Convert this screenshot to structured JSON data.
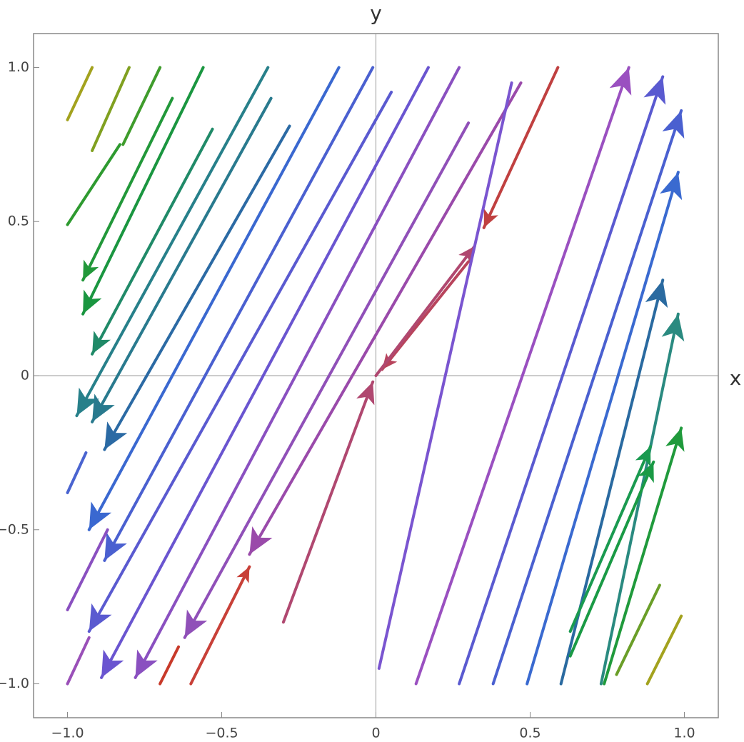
{
  "chart_data": {
    "type": "stream",
    "xlabel": "x",
    "ylabel": "y",
    "xlim": [
      -1.11,
      1.11
    ],
    "ylim": [
      -1.11,
      1.11
    ],
    "xticks": [
      {
        "value": -1,
        "label": "−1.0"
      },
      {
        "value": -0.5,
        "label": "−0.5"
      },
      0,
      0.5,
      {
        "value": 1,
        "label": "1.0"
      }
    ],
    "yticks": [
      {
        "value": -1,
        "label": "−1.0"
      },
      {
        "value": -0.5,
        "label": "−0.5"
      },
      0,
      0.5,
      {
        "value": 1,
        "label": "1.0"
      }
    ],
    "streamlines": [
      {
        "x": [
          -0.92,
          -1.0
        ],
        "y": [
          1.0,
          0.83
        ],
        "color": "#a3a21e",
        "arrow": false
      },
      {
        "x": [
          -0.8,
          -0.92
        ],
        "y": [
          1.0,
          0.73
        ],
        "color": "#80a020",
        "arrow": false
      },
      {
        "x": [
          -0.7,
          -0.82
        ],
        "y": [
          1.0,
          0.75
        ],
        "color": "#3f9c2c",
        "arrow": false
      },
      {
        "x": [
          -0.83,
          -1.0
        ],
        "y": [
          0.75,
          0.49
        ],
        "color": "#2e9a30",
        "arrow": false
      },
      {
        "x": [
          -0.66,
          -0.95
        ],
        "y": [
          0.9,
          0.31
        ],
        "color": "#22983a",
        "arrow": true
      },
      {
        "x": [
          -0.56,
          -0.95
        ],
        "y": [
          1.0,
          0.2
        ],
        "color": "#1a9640",
        "arrow": true
      },
      {
        "x": [
          -0.53,
          -0.92
        ],
        "y": [
          0.8,
          0.07
        ],
        "color": "#208a68",
        "arrow": true
      },
      {
        "x": [
          -0.35,
          -0.97
        ],
        "y": [
          1.0,
          -0.13
        ],
        "color": "#27808a",
        "arrow": true
      },
      {
        "x": [
          -0.34,
          -0.92
        ],
        "y": [
          0.9,
          -0.15
        ],
        "color": "#297a8e",
        "arrow": true
      },
      {
        "x": [
          -0.28,
          -0.88
        ],
        "y": [
          0.81,
          -0.24
        ],
        "color": "#2b6aa4",
        "arrow": true
      },
      {
        "x": [
          -0.12,
          -0.93
        ],
        "y": [
          1.0,
          -0.5
        ],
        "color": "#3a68d0",
        "arrow": true
      },
      {
        "x": [
          -0.01,
          -0.88
        ],
        "y": [
          1.0,
          -0.6
        ],
        "color": "#4a60d0",
        "arrow": true
      },
      {
        "x": [
          0.05,
          -0.93
        ],
        "y": [
          0.92,
          -0.83
        ],
        "color": "#5a5ad0",
        "arrow": true
      },
      {
        "x": [
          0.17,
          -0.89
        ],
        "y": [
          1.0,
          -0.98
        ],
        "color": "#6a55d0",
        "arrow": true
      },
      {
        "x": [
          0.27,
          -0.78
        ],
        "y": [
          1.0,
          -0.98
        ],
        "color": "#8a50c0",
        "arrow": true
      },
      {
        "x": [
          0.3,
          -0.62
        ],
        "y": [
          0.82,
          -0.85
        ],
        "color": "#9050b8",
        "arrow": true
      },
      {
        "x": [
          0.47,
          -0.41
        ],
        "y": [
          0.95,
          -0.58
        ],
        "color": "#9a4aaa",
        "arrow": true
      },
      {
        "x": [
          0.59,
          0.35
        ],
        "y": [
          1.0,
          0.48
        ],
        "color": "#c04040",
        "arrow": true
      },
      {
        "x": [
          0.3,
          0.02
        ],
        "y": [
          0.37,
          0.02
        ],
        "color": "#b8445c",
        "arrow": true
      },
      {
        "x": [
          0.0,
          0.32
        ],
        "y": [
          0.0,
          0.42
        ],
        "color": "#b04870",
        "arrow": true
      },
      {
        "x": [
          -0.3,
          -0.01
        ],
        "y": [
          -0.8,
          -0.02
        ],
        "color": "#b04870",
        "arrow": true
      },
      {
        "x": [
          -0.6,
          -0.41
        ],
        "y": [
          -1.0,
          -0.62
        ],
        "color": "#c84038",
        "arrow": true
      },
      {
        "x": [
          -0.7,
          -0.64
        ],
        "y": [
          -1.0,
          -0.88
        ],
        "color": "#c83a2a",
        "arrow": false
      },
      {
        "x": [
          0.13,
          0.82
        ],
        "y": [
          -1.0,
          1.0
        ],
        "color": "#9a50c0",
        "arrow": true
      },
      {
        "x": [
          0.01,
          0.44
        ],
        "y": [
          -0.95,
          0.95
        ],
        "color": "#7a55d0",
        "arrow": false
      },
      {
        "x": [
          0.27,
          0.93
        ],
        "y": [
          -1.0,
          0.97
        ],
        "color": "#5a5ad0",
        "arrow": true
      },
      {
        "x": [
          0.38,
          0.99
        ],
        "y": [
          -1.0,
          0.86
        ],
        "color": "#4a60d0",
        "arrow": true
      },
      {
        "x": [
          0.49,
          0.98
        ],
        "y": [
          -1.0,
          0.66
        ],
        "color": "#3a6ad0",
        "arrow": true
      },
      {
        "x": [
          0.6,
          0.93
        ],
        "y": [
          -1.0,
          0.31
        ],
        "color": "#2a6aa0",
        "arrow": true
      },
      {
        "x": [
          0.73,
          0.98
        ],
        "y": [
          -1.0,
          0.2
        ],
        "color": "#2a8a80",
        "arrow": true
      },
      {
        "x": [
          0.63,
          0.89
        ],
        "y": [
          -0.83,
          -0.23
        ],
        "color": "#1a9a50",
        "arrow": true
      },
      {
        "x": [
          0.63,
          0.9
        ],
        "y": [
          -0.91,
          -0.28
        ],
        "color": "#1a9a45",
        "arrow": true
      },
      {
        "x": [
          0.74,
          0.99
        ],
        "y": [
          -1.0,
          -0.17
        ],
        "color": "#209a3c",
        "arrow": true
      },
      {
        "x": [
          0.78,
          0.92
        ],
        "y": [
          -0.97,
          -0.68
        ],
        "color": "#6a9e28",
        "arrow": false
      },
      {
        "x": [
          0.88,
          0.99
        ],
        "y": [
          -1.0,
          -0.78
        ],
        "color": "#a3a21e",
        "arrow": false
      },
      {
        "x": [
          -1.0,
          -0.93
        ],
        "y": [
          -1.0,
          -0.85
        ],
        "color": "#9a50b8",
        "arrow": false
      },
      {
        "x": [
          -1.0,
          -0.87
        ],
        "y": [
          -0.76,
          -0.5
        ],
        "color": "#8a50c0",
        "arrow": false
      },
      {
        "x": [
          -1.0,
          -0.94
        ],
        "y": [
          -0.38,
          -0.25
        ],
        "color": "#4a64d0",
        "arrow": false
      }
    ]
  }
}
